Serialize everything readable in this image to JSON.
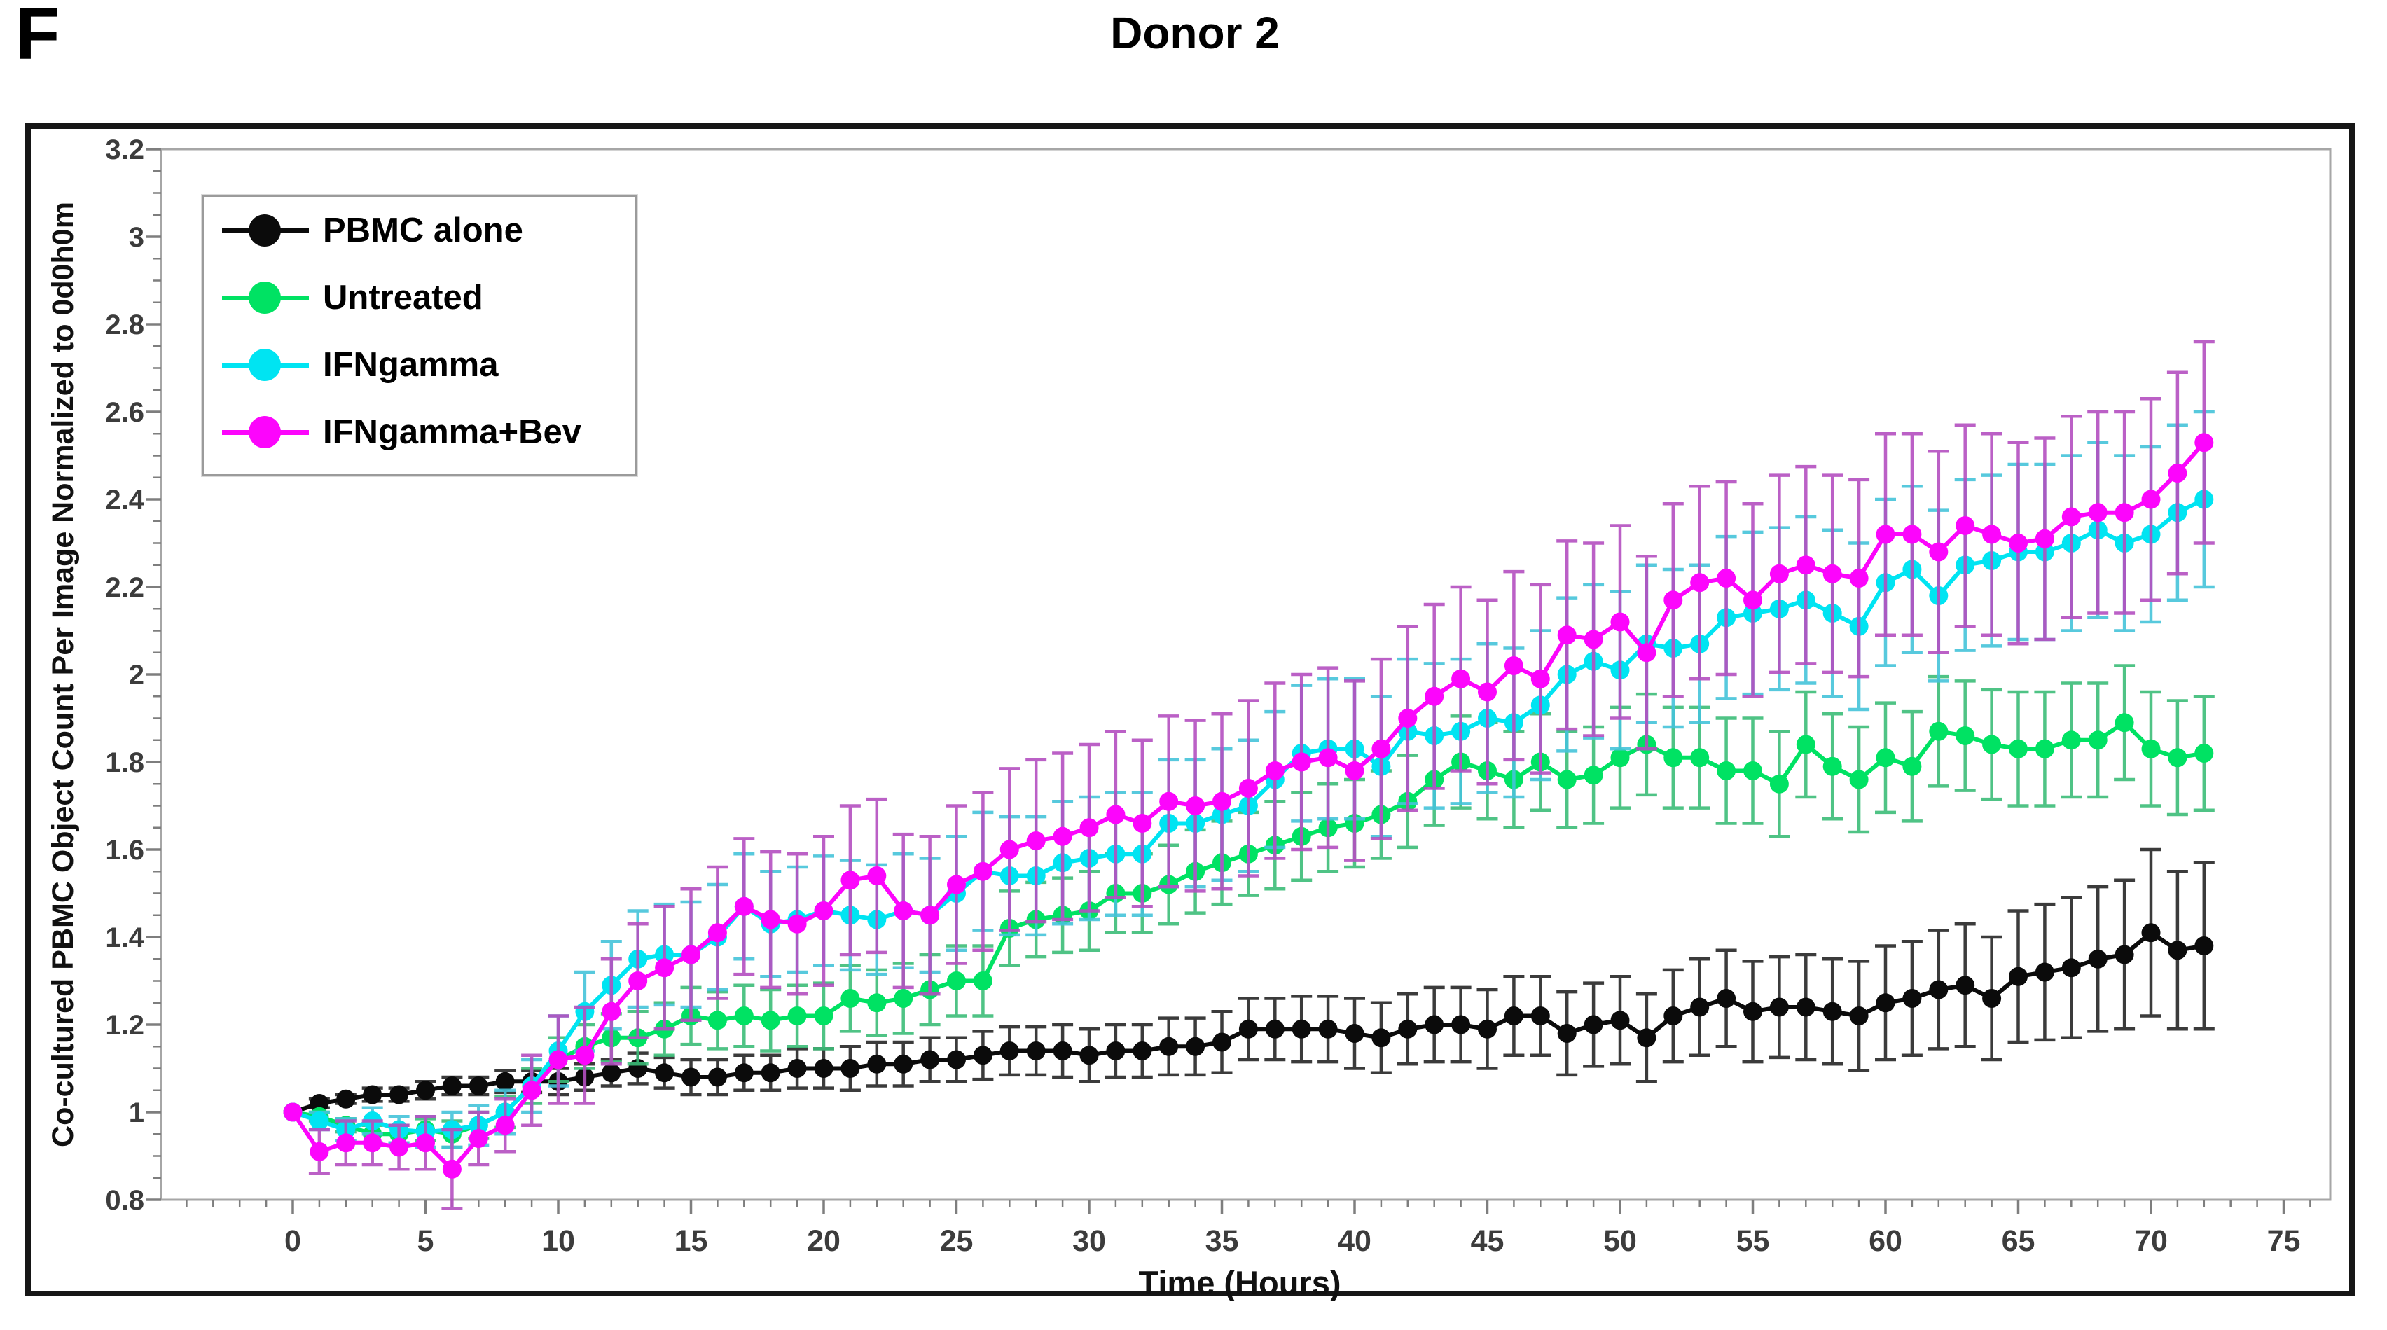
{
  "panel_label": "F",
  "title": "Donor 2",
  "chart_data": {
    "type": "line",
    "title": "Donor 2",
    "xlabel": "Time (Hours)",
    "ylabel": "Co-cultured PBMC Object Count Per Image Normalized to 0d0h0m",
    "xlim": [
      -5,
      76.7
    ],
    "ylim": [
      0.8,
      3.2
    ],
    "x_ticks": [
      0,
      5,
      10,
      15,
      20,
      25,
      30,
      35,
      40,
      45,
      50,
      55,
      60,
      65,
      70,
      75
    ],
    "x_minor_step": 1,
    "y_ticks": [
      0.8,
      1,
      1.2,
      1.4,
      1.6,
      1.8,
      2,
      2.2,
      2.4,
      2.6,
      2.8,
      3,
      3.2
    ],
    "y_minor_step": 0.05,
    "grid": false,
    "legend_position": "upper-left",
    "error_bars": true,
    "x": [
      0,
      1,
      2,
      3,
      4,
      5,
      6,
      7,
      8,
      9,
      10,
      11,
      12,
      13,
      14,
      15,
      16,
      17,
      18,
      19,
      20,
      21,
      22,
      23,
      24,
      25,
      26,
      27,
      28,
      29,
      30,
      31,
      32,
      33,
      34,
      35,
      36,
      37,
      38,
      39,
      40,
      41,
      42,
      43,
      44,
      45,
      46,
      47,
      48,
      49,
      50,
      51,
      52,
      53,
      54,
      55,
      56,
      57,
      58,
      59,
      60,
      61,
      62,
      63,
      64,
      65,
      66,
      67,
      68,
      69,
      70,
      71,
      72
    ],
    "series": [
      {
        "name": "PBMC alone",
        "color": "#0b0b0b",
        "err_color": "#262626",
        "values": [
          1.0,
          1.02,
          1.03,
          1.04,
          1.04,
          1.05,
          1.06,
          1.06,
          1.07,
          1.07,
          1.07,
          1.08,
          1.09,
          1.1,
          1.09,
          1.08,
          1.08,
          1.09,
          1.09,
          1.1,
          1.1,
          1.1,
          1.11,
          1.11,
          1.12,
          1.12,
          1.13,
          1.14,
          1.14,
          1.14,
          1.13,
          1.14,
          1.14,
          1.15,
          1.15,
          1.16,
          1.19,
          1.19,
          1.19,
          1.19,
          1.18,
          1.17,
          1.19,
          1.2,
          1.2,
          1.19,
          1.22,
          1.22,
          1.18,
          1.2,
          1.21,
          1.17,
          1.22,
          1.24,
          1.26,
          1.23,
          1.24,
          1.24,
          1.23,
          1.22,
          1.25,
          1.26,
          1.28,
          1.29,
          1.26,
          1.31,
          1.32,
          1.33,
          1.35,
          1.36,
          1.41,
          1.37,
          1.38
        ],
        "errors": [
          0.005,
          0.01,
          0.01,
          0.015,
          0.015,
          0.02,
          0.02,
          0.02,
          0.025,
          0.025,
          0.03,
          0.03,
          0.03,
          0.035,
          0.035,
          0.04,
          0.04,
          0.04,
          0.04,
          0.045,
          0.045,
          0.05,
          0.05,
          0.05,
          0.05,
          0.05,
          0.055,
          0.055,
          0.055,
          0.06,
          0.06,
          0.06,
          0.06,
          0.065,
          0.065,
          0.07,
          0.07,
          0.07,
          0.075,
          0.075,
          0.08,
          0.08,
          0.08,
          0.085,
          0.085,
          0.09,
          0.09,
          0.09,
          0.095,
          0.095,
          0.1,
          0.1,
          0.105,
          0.11,
          0.11,
          0.115,
          0.115,
          0.12,
          0.12,
          0.125,
          0.13,
          0.13,
          0.135,
          0.14,
          0.14,
          0.15,
          0.155,
          0.16,
          0.165,
          0.17,
          0.19,
          0.18,
          0.19
        ]
      },
      {
        "name": "Untreated",
        "color": "#00e263",
        "err_color": "#3cbd78",
        "values": [
          1.0,
          0.99,
          0.97,
          0.95,
          0.95,
          0.96,
          0.95,
          0.97,
          1.0,
          1.06,
          1.12,
          1.15,
          1.17,
          1.17,
          1.19,
          1.22,
          1.21,
          1.22,
          1.21,
          1.22,
          1.22,
          1.26,
          1.25,
          1.26,
          1.28,
          1.3,
          1.3,
          1.42,
          1.44,
          1.45,
          1.46,
          1.5,
          1.5,
          1.52,
          1.55,
          1.57,
          1.59,
          1.61,
          1.63,
          1.65,
          1.66,
          1.68,
          1.71,
          1.76,
          1.8,
          1.78,
          1.76,
          1.8,
          1.76,
          1.77,
          1.81,
          1.84,
          1.81,
          1.81,
          1.78,
          1.78,
          1.75,
          1.84,
          1.79,
          1.76,
          1.81,
          1.79,
          1.87,
          1.86,
          1.84,
          1.83,
          1.83,
          1.85,
          1.85,
          1.89,
          1.83,
          1.81,
          1.82
        ],
        "errors": [
          0.005,
          0.01,
          0.015,
          0.02,
          0.02,
          0.025,
          0.03,
          0.03,
          0.035,
          0.04,
          0.05,
          0.05,
          0.055,
          0.06,
          0.06,
          0.065,
          0.065,
          0.07,
          0.07,
          0.07,
          0.075,
          0.075,
          0.075,
          0.08,
          0.08,
          0.08,
          0.08,
          0.085,
          0.085,
          0.085,
          0.09,
          0.09,
          0.09,
          0.09,
          0.095,
          0.095,
          0.095,
          0.1,
          0.1,
          0.1,
          0.1,
          0.1,
          0.105,
          0.105,
          0.105,
          0.11,
          0.11,
          0.11,
          0.11,
          0.11,
          0.115,
          0.115,
          0.115,
          0.115,
          0.12,
          0.12,
          0.12,
          0.12,
          0.12,
          0.12,
          0.125,
          0.125,
          0.125,
          0.125,
          0.125,
          0.13,
          0.13,
          0.13,
          0.13,
          0.13,
          0.13,
          0.13,
          0.13
        ]
      },
      {
        "name": "IFNgamma",
        "color": "#00e4f2",
        "err_color": "#45c4da",
        "values": [
          1.0,
          0.98,
          0.96,
          0.98,
          0.96,
          0.955,
          0.96,
          0.97,
          1.0,
          1.06,
          1.14,
          1.23,
          1.29,
          1.35,
          1.36,
          1.36,
          1.4,
          1.47,
          1.43,
          1.44,
          1.46,
          1.45,
          1.44,
          1.46,
          1.45,
          1.5,
          1.55,
          1.54,
          1.54,
          1.57,
          1.58,
          1.59,
          1.59,
          1.66,
          1.66,
          1.68,
          1.7,
          1.76,
          1.82,
          1.83,
          1.83,
          1.79,
          1.87,
          1.86,
          1.87,
          1.9,
          1.89,
          1.93,
          2.0,
          2.03,
          2.01,
          2.07,
          2.06,
          2.07,
          2.13,
          2.14,
          2.15,
          2.17,
          2.14,
          2.11,
          2.21,
          2.24,
          2.18,
          2.25,
          2.26,
          2.28,
          2.28,
          2.3,
          2.33,
          2.3,
          2.32,
          2.37,
          2.4
        ],
        "errors": [
          0.005,
          0.02,
          0.025,
          0.03,
          0.03,
          0.035,
          0.04,
          0.045,
          0.05,
          0.06,
          0.08,
          0.09,
          0.1,
          0.11,
          0.115,
          0.12,
          0.12,
          0.12,
          0.12,
          0.12,
          0.125,
          0.125,
          0.125,
          0.13,
          0.13,
          0.13,
          0.135,
          0.135,
          0.135,
          0.14,
          0.14,
          0.14,
          0.14,
          0.145,
          0.145,
          0.15,
          0.15,
          0.155,
          0.155,
          0.16,
          0.16,
          0.16,
          0.165,
          0.165,
          0.165,
          0.17,
          0.17,
          0.17,
          0.175,
          0.175,
          0.18,
          0.18,
          0.18,
          0.18,
          0.185,
          0.185,
          0.185,
          0.19,
          0.19,
          0.19,
          0.19,
          0.19,
          0.195,
          0.195,
          0.195,
          0.2,
          0.2,
          0.2,
          0.2,
          0.2,
          0.2,
          0.2,
          0.2
        ]
      },
      {
        "name": "IFNgamma+Bev",
        "color": "#fc05fc",
        "err_color": "#b44fc0",
        "values": [
          1.0,
          0.91,
          0.93,
          0.93,
          0.92,
          0.93,
          0.87,
          0.94,
          0.97,
          1.05,
          1.12,
          1.13,
          1.23,
          1.3,
          1.33,
          1.36,
          1.41,
          1.47,
          1.44,
          1.43,
          1.46,
          1.53,
          1.54,
          1.46,
          1.45,
          1.52,
          1.55,
          1.6,
          1.62,
          1.63,
          1.65,
          1.68,
          1.66,
          1.71,
          1.7,
          1.71,
          1.74,
          1.78,
          1.8,
          1.81,
          1.78,
          1.83,
          1.9,
          1.95,
          1.99,
          1.96,
          2.02,
          1.99,
          2.09,
          2.08,
          2.12,
          2.05,
          2.17,
          2.21,
          2.22,
          2.17,
          2.23,
          2.25,
          2.23,
          2.22,
          2.32,
          2.32,
          2.28,
          2.34,
          2.32,
          2.3,
          2.31,
          2.36,
          2.37,
          2.37,
          2.4,
          2.46,
          2.53
        ],
        "errors": [
          0.005,
          0.05,
          0.05,
          0.05,
          0.05,
          0.06,
          0.09,
          0.06,
          0.06,
          0.08,
          0.1,
          0.11,
          0.12,
          0.13,
          0.14,
          0.15,
          0.15,
          0.155,
          0.155,
          0.16,
          0.17,
          0.17,
          0.175,
          0.175,
          0.18,
          0.18,
          0.18,
          0.185,
          0.185,
          0.19,
          0.19,
          0.19,
          0.19,
          0.195,
          0.195,
          0.2,
          0.2,
          0.2,
          0.2,
          0.205,
          0.205,
          0.205,
          0.21,
          0.21,
          0.21,
          0.21,
          0.215,
          0.215,
          0.215,
          0.22,
          0.22,
          0.22,
          0.22,
          0.22,
          0.22,
          0.22,
          0.225,
          0.225,
          0.225,
          0.225,
          0.23,
          0.23,
          0.23,
          0.23,
          0.23,
          0.23,
          0.23,
          0.23,
          0.23,
          0.23,
          0.23,
          0.23,
          0.23
        ]
      }
    ]
  }
}
